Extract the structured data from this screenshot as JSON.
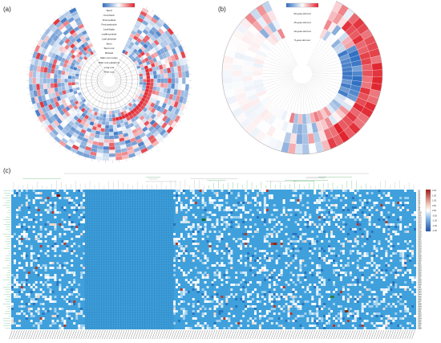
{
  "panels": {
    "a": {
      "label": "(a)",
      "ring_labels": [
        "Seed",
        "Fruit flesh",
        "Fruit pedicel",
        "Fruit peduncle",
        "Leaf blade",
        "Leaflet petiole",
        "Leaf petiolule",
        "Stem",
        "Stem root",
        "Rhizoid",
        "Main root cortex",
        "Main root epidermis",
        "Long root",
        "Fiber root"
      ]
    },
    "b": {
      "label": "(b)",
      "ring_labels": [
        "20-year-old root",
        "15-year-old root",
        "10-year-old root",
        "5-year-old root"
      ]
    },
    "c": {
      "label": "(c)",
      "row_labels": [
        "S1",
        "S2",
        "S3",
        "S4",
        "S5",
        "S6",
        "S7",
        "S8",
        "S9",
        "S10",
        "S11",
        "S12",
        "S13",
        "S14",
        "S15",
        "S16",
        "S17",
        "S18",
        "S19",
        "S20",
        "S21",
        "S22",
        "S23",
        "S24",
        "S25",
        "S26",
        "S27",
        "S28",
        "S29",
        "S30",
        "S31",
        "S32",
        "S33",
        "S34",
        "S35",
        "S36",
        "S37",
        "S38",
        "S39",
        "S40",
        "S41",
        "S42",
        "S43",
        "S44",
        "S45",
        "S46",
        "S47",
        "S48",
        "S49",
        "S50",
        "S51",
        "S52",
        "S53",
        "S54",
        "S55",
        "S56",
        "S57",
        "S58",
        "S59",
        "S60",
        "S61",
        "S62",
        "S63",
        "S64",
        "S65",
        "S66",
        "S67",
        "S68",
        "S69",
        "S70",
        "S71",
        "S72",
        "S73",
        "S74",
        "S75",
        "S76",
        "S77",
        "S78",
        "S79",
        "S80"
      ],
      "colorbar_ticks": [
        "2.00",
        "1.50",
        "1.00",
        "0.50",
        "0.00",
        "-0.50",
        "-1.00",
        "-1.50",
        "-2.00"
      ]
    }
  },
  "colors": {
    "high": "#e0202a",
    "mid": "#ffffff",
    "low": "#2b6cc0",
    "heatmap_base": "#3fa0dc",
    "heatmap_grid": "#1e6fa8",
    "dendro_green": "#2e9e4a",
    "dendro_gray": "#9a9a9a"
  }
}
